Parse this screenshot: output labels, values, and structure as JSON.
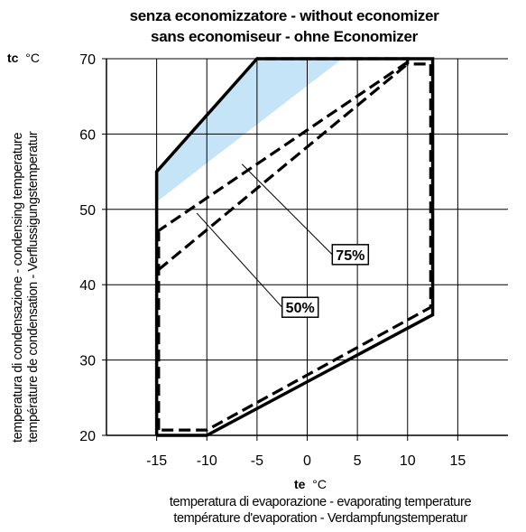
{
  "chart_data": {
    "type": "line",
    "title": [
      "senza economizzatore  -  without economizer",
      "sans economiseur  -  ohne Economizer"
    ],
    "x_axis": {
      "symbol": "te",
      "unit": "°C",
      "labels": [
        "temperatura di evaporazione  -   evaporating temperature",
        "température d'evaporation  -  Verdampfungstemperatur"
      ],
      "range": [
        -20,
        20
      ],
      "ticks": [
        -15,
        -10,
        -5,
        0,
        5,
        10,
        15
      ],
      "grid": true
    },
    "y_axis": {
      "symbol": "tc",
      "unit": "°C",
      "labels": [
        "temperatura di condensazione - condensing temperature",
        "température de condensation - Verflussigungstemperatur"
      ],
      "range": [
        20,
        70
      ],
      "ticks": [
        20,
        30,
        40,
        50,
        60,
        70
      ],
      "grid": true
    },
    "series": [
      {
        "style": "solid",
        "points": [
          [
            -15,
            20
          ],
          [
            -10,
            20
          ],
          [
            12.5,
            36
          ],
          [
            12.5,
            70
          ],
          [
            -5,
            70
          ],
          [
            -15,
            55
          ],
          [
            -15,
            20
          ]
        ]
      },
      {
        "style": "dashed",
        "points": [
          [
            -14.5,
            20.7
          ],
          [
            -10,
            20.7
          ],
          [
            12.3,
            37
          ],
          [
            12.3,
            69.3
          ],
          [
            10,
            69.3
          ],
          [
            10,
            70
          ],
          [
            -5,
            70
          ]
        ]
      },
      {
        "style": "dashed",
        "label": "75%",
        "points": [
          [
            -15,
            47
          ],
          [
            10.5,
            70
          ]
        ]
      },
      {
        "style": "dashed",
        "label": "50%",
        "points": [
          [
            -14.8,
            42
          ],
          [
            10,
            69.3
          ]
        ]
      },
      {
        "style": "dashed",
        "points": [
          [
            -14.8,
            20.7
          ],
          [
            -14.8,
            47
          ]
        ]
      }
    ],
    "shaded_region": {
      "color": "#c6e4f8",
      "points": [
        [
          -15,
          51
        ],
        [
          -15,
          55
        ],
        [
          -5,
          70
        ],
        [
          3.5,
          70
        ],
        [
          -15,
          51
        ]
      ]
    },
    "annotations": [
      {
        "text": "75%",
        "leader_from": [
          -6.5,
          56
        ],
        "box_at": [
          2.5,
          44
        ]
      },
      {
        "text": "50%",
        "leader_from": [
          -11,
          49.5
        ],
        "box_at": [
          -2.5,
          37
        ]
      }
    ]
  }
}
